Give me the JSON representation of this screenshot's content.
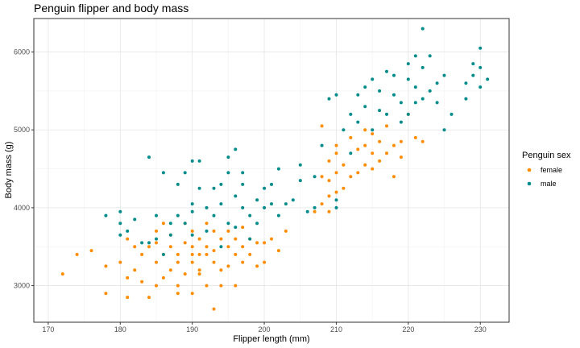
{
  "chart_data": {
    "type": "scatter",
    "title": "Penguin flipper and body mass",
    "xlabel": "Flipper length (mm)",
    "ylabel": "Body mass (g)",
    "xlim": [
      168,
      234
    ],
    "ylim": [
      2530,
      6430
    ],
    "x_ticks": [
      170,
      180,
      190,
      200,
      210,
      220,
      230
    ],
    "y_ticks": [
      3000,
      4000,
      5000,
      6000
    ],
    "grid": true,
    "legend": {
      "title": "Penguin sex",
      "position": "right"
    },
    "series": [
      {
        "name": "female",
        "color": "#FF8C00",
        "points": [
          [
            172,
            3150
          ],
          [
            174,
            3400
          ],
          [
            176,
            3450
          ],
          [
            178,
            3250
          ],
          [
            178,
            2900
          ],
          [
            180,
            3300
          ],
          [
            181,
            2850
          ],
          [
            181,
            3100
          ],
          [
            181,
            3600
          ],
          [
            182,
            3200
          ],
          [
            182,
            3500
          ],
          [
            183,
            3400
          ],
          [
            183,
            3050
          ],
          [
            184,
            2850
          ],
          [
            184,
            3500
          ],
          [
            185,
            3300
          ],
          [
            185,
            3000
          ],
          [
            185,
            3550
          ],
          [
            185,
            3700
          ],
          [
            186,
            3100
          ],
          [
            186,
            3400
          ],
          [
            186,
            3800
          ],
          [
            187,
            3200
          ],
          [
            187,
            3500
          ],
          [
            187,
            3650
          ],
          [
            188,
            3300
          ],
          [
            188,
            3000
          ],
          [
            188,
            2900
          ],
          [
            188,
            3400
          ],
          [
            189,
            3150
          ],
          [
            189,
            3550
          ],
          [
            189,
            3800
          ],
          [
            190,
            3300
          ],
          [
            190,
            3500
          ],
          [
            190,
            2900
          ],
          [
            190,
            3700
          ],
          [
            190,
            3400
          ],
          [
            191,
            3150
          ],
          [
            191,
            3400
          ],
          [
            191,
            3600
          ],
          [
            191,
            3200
          ],
          [
            192,
            3000
          ],
          [
            192,
            3500
          ],
          [
            192,
            3800
          ],
          [
            192,
            3400
          ],
          [
            193,
            2700
          ],
          [
            193,
            3300
          ],
          [
            193,
            3450
          ],
          [
            193,
            3700
          ],
          [
            194,
            3000
          ],
          [
            194,
            3200
          ],
          [
            194,
            3600
          ],
          [
            195,
            3250
          ],
          [
            195,
            3500
          ],
          [
            195,
            3700
          ],
          [
            196,
            3000
          ],
          [
            196,
            3400
          ],
          [
            196,
            3600
          ],
          [
            197,
            3300
          ],
          [
            197,
            3500
          ],
          [
            197,
            3750
          ],
          [
            198,
            3400
          ],
          [
            198,
            3600
          ],
          [
            199,
            3250
          ],
          [
            199,
            3550
          ],
          [
            200,
            3300
          ],
          [
            200,
            3550
          ],
          [
            201,
            3600
          ],
          [
            202,
            3450
          ],
          [
            203,
            3700
          ],
          [
            207,
            3950
          ],
          [
            208,
            4050
          ],
          [
            208,
            4400
          ],
          [
            208,
            5050
          ],
          [
            209,
            3950
          ],
          [
            209,
            4150
          ],
          [
            209,
            4350
          ],
          [
            209,
            4600
          ],
          [
            210,
            4200
          ],
          [
            210,
            4450
          ],
          [
            210,
            4700
          ],
          [
            210,
            4800
          ],
          [
            211,
            4250
          ],
          [
            211,
            4550
          ],
          [
            212,
            4400
          ],
          [
            212,
            4900
          ],
          [
            213,
            4450
          ],
          [
            213,
            4750
          ],
          [
            214,
            4550
          ],
          [
            214,
            4800
          ],
          [
            214,
            5000
          ],
          [
            215,
            4500
          ],
          [
            215,
            4700
          ],
          [
            215,
            4950
          ],
          [
            216,
            4600
          ],
          [
            216,
            4850
          ],
          [
            217,
            4700
          ],
          [
            217,
            5050
          ],
          [
            218,
            4400
          ],
          [
            218,
            4800
          ],
          [
            219,
            4650
          ],
          [
            219,
            4850
          ],
          [
            220,
            5200
          ],
          [
            221,
            4900
          ],
          [
            222,
            4850
          ]
        ]
      },
      {
        "name": "male",
        "color": "#008B8B",
        "points": [
          [
            178,
            3900
          ],
          [
            180,
            3650
          ],
          [
            180,
            3800
          ],
          [
            180,
            3950
          ],
          [
            181,
            3700
          ],
          [
            182,
            3850
          ],
          [
            183,
            3550
          ],
          [
            184,
            3550
          ],
          [
            184,
            4650
          ],
          [
            185,
            3900
          ],
          [
            185,
            3600
          ],
          [
            186,
            3400
          ],
          [
            186,
            4450
          ],
          [
            187,
            3800
          ],
          [
            187,
            3650
          ],
          [
            188,
            3900
          ],
          [
            188,
            4300
          ],
          [
            189,
            3800
          ],
          [
            189,
            4450
          ],
          [
            190,
            4600
          ],
          [
            190,
            3950
          ],
          [
            190,
            3650
          ],
          [
            190,
            4050
          ],
          [
            191,
            4600
          ],
          [
            191,
            4250
          ],
          [
            192,
            3700
          ],
          [
            192,
            4000
          ],
          [
            193,
            3900
          ],
          [
            193,
            4250
          ],
          [
            194,
            4050
          ],
          [
            194,
            4300
          ],
          [
            194,
            3500
          ],
          [
            195,
            3800
          ],
          [
            195,
            4450
          ],
          [
            195,
            4650
          ],
          [
            196,
            4750
          ],
          [
            196,
            4150
          ],
          [
            196,
            3750
          ],
          [
            197,
            4000
          ],
          [
            197,
            4300
          ],
          [
            197,
            4450
          ],
          [
            198,
            3900
          ],
          [
            198,
            3600
          ],
          [
            199,
            4100
          ],
          [
            199,
            3800
          ],
          [
            200,
            4000
          ],
          [
            200,
            4250
          ],
          [
            201,
            4050
          ],
          [
            201,
            4300
          ],
          [
            202,
            3900
          ],
          [
            202,
            4500
          ],
          [
            203,
            4050
          ],
          [
            204,
            4100
          ],
          [
            205,
            4550
          ],
          [
            205,
            4350
          ],
          [
            206,
            3950
          ],
          [
            207,
            4000
          ],
          [
            207,
            4400
          ],
          [
            208,
            4800
          ],
          [
            209,
            5400
          ],
          [
            210,
            5450
          ],
          [
            210,
            4000
          ],
          [
            210,
            4100
          ],
          [
            211,
            5000
          ],
          [
            212,
            4700
          ],
          [
            212,
            5200
          ],
          [
            213,
            5450
          ],
          [
            213,
            5100
          ],
          [
            214,
            5550
          ],
          [
            214,
            5300
          ],
          [
            215,
            5650
          ],
          [
            215,
            5000
          ],
          [
            216,
            5250
          ],
          [
            216,
            5500
          ],
          [
            217,
            5750
          ],
          [
            217,
            5200
          ],
          [
            218,
            5450
          ],
          [
            218,
            5700
          ],
          [
            219,
            5350
          ],
          [
            219,
            5100
          ],
          [
            220,
            5850
          ],
          [
            220,
            5650
          ],
          [
            220,
            5200
          ],
          [
            221,
            5950
          ],
          [
            221,
            5350
          ],
          [
            221,
            5550
          ],
          [
            222,
            6300
          ],
          [
            222,
            5800
          ],
          [
            222,
            5400
          ],
          [
            223,
            5500
          ],
          [
            223,
            5950
          ],
          [
            224,
            5600
          ],
          [
            224,
            5350
          ],
          [
            225,
            5700
          ],
          [
            225,
            5000
          ],
          [
            226,
            5200
          ],
          [
            228,
            5600
          ],
          [
            228,
            5400
          ],
          [
            229,
            5850
          ],
          [
            229,
            5700
          ],
          [
            230,
            5800
          ],
          [
            230,
            5550
          ],
          [
            230,
            6050
          ],
          [
            231,
            5650
          ]
        ]
      }
    ]
  }
}
